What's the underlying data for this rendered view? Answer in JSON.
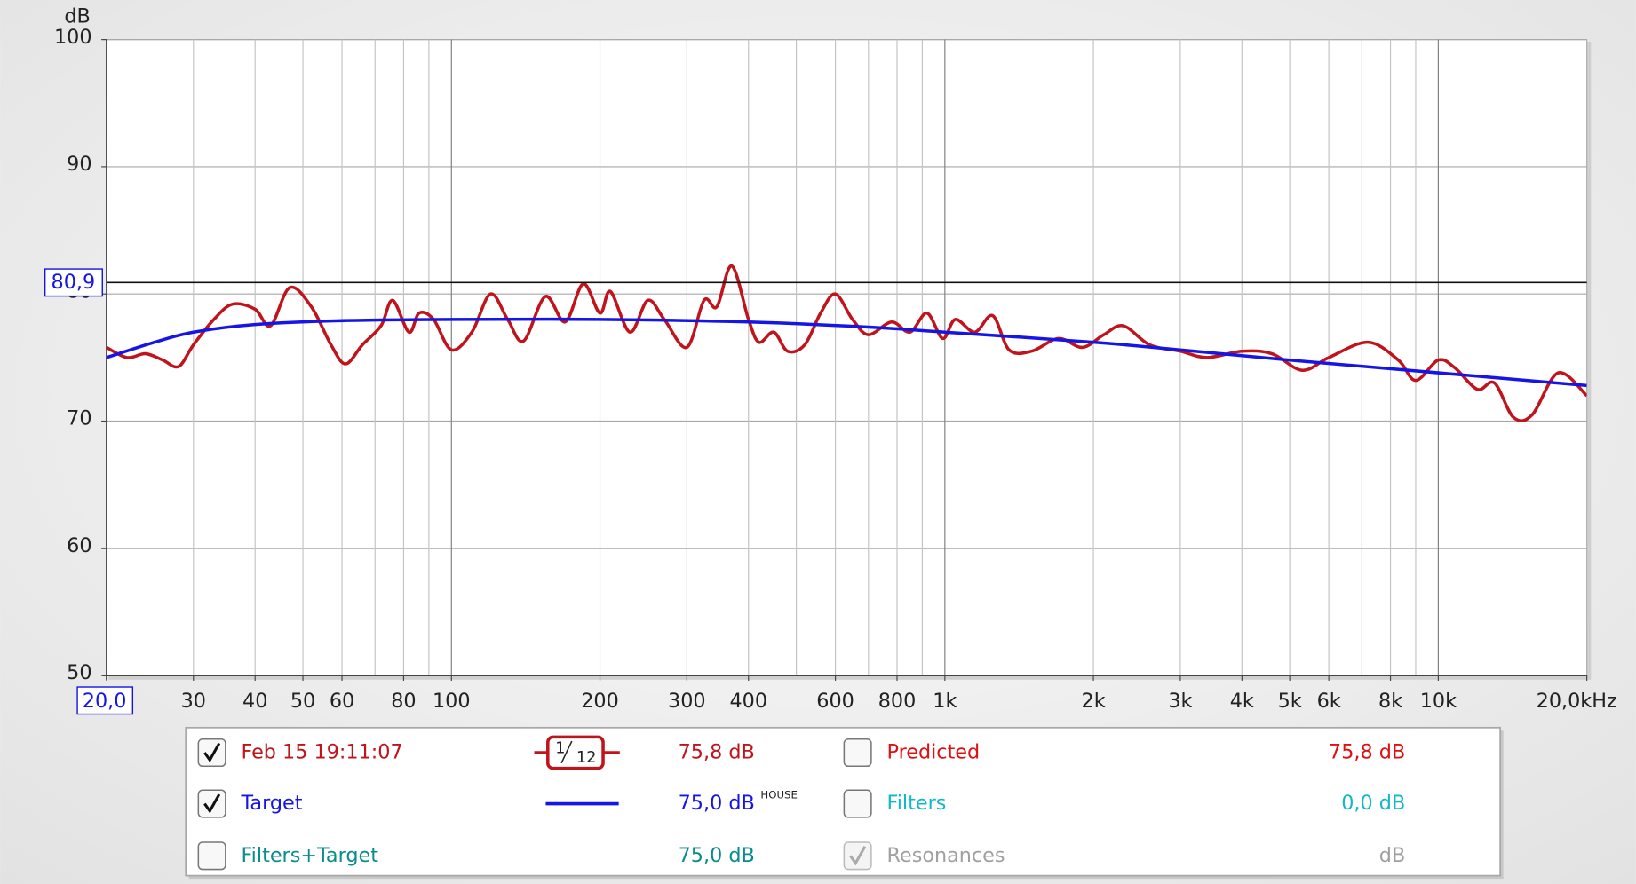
{
  "chart_data": {
    "type": "line",
    "y_label": "dB",
    "x_scale": "log",
    "xlim": [
      20,
      20000
    ],
    "ylim": [
      50,
      100
    ],
    "xticks": [
      {
        "value": 20,
        "label": "20,0"
      },
      30,
      40,
      50,
      60,
      80,
      100,
      200,
      300,
      400,
      600,
      800,
      {
        "value": 1000,
        "label": "1k"
      },
      {
        "value": 2000,
        "label": "2k"
      },
      {
        "value": 3000,
        "label": "3k"
      },
      {
        "value": 4000,
        "label": "4k"
      },
      {
        "value": 5000,
        "label": "5k"
      },
      {
        "value": 6000,
        "label": "6k"
      },
      {
        "value": 8000,
        "label": "8k"
      },
      {
        "value": 10000,
        "label": "10k"
      },
      {
        "value": 20000,
        "label": "20,0kHz"
      }
    ],
    "xgrid_minor": [
      70,
      90,
      500,
      700,
      900,
      7000,
      9000
    ],
    "yticks": [
      50,
      60,
      70,
      80,
      90,
      100
    ],
    "grid": true,
    "cursor_y": {
      "value": 80.9,
      "label": "80,9"
    },
    "series": [
      {
        "name": "Feb 15 19:11:07",
        "color": "#c0141c",
        "checked": true,
        "x": [
          20,
          22,
          24,
          26,
          28,
          30,
          33,
          36,
          40,
          43,
          47,
          52,
          57,
          61,
          66,
          72,
          76,
          82,
          86,
          92,
          100,
          110,
          120,
          130,
          140,
          155,
          170,
          185,
          200,
          210,
          230,
          250,
          270,
          300,
          325,
          345,
          370,
          400,
          420,
          450,
          480,
          520,
          560,
          600,
          650,
          700,
          780,
          850,
          920,
          990,
          1050,
          1150,
          1250,
          1350,
          1500,
          1700,
          1900,
          2100,
          2300,
          2600,
          3000,
          3400,
          4000,
          4600,
          5300,
          6000,
          7200,
          8300,
          9000,
          10000,
          10800,
          12000,
          13000,
          14200,
          15500,
          17500,
          20000
        ],
        "values": [
          75.8,
          75.0,
          75.3,
          74.8,
          74.3,
          76.0,
          78.0,
          79.2,
          78.8,
          77.5,
          80.5,
          79.0,
          76.0,
          74.5,
          76.0,
          77.5,
          79.5,
          77.0,
          78.5,
          78.0,
          75.6,
          77.0,
          80.0,
          78.0,
          76.3,
          79.8,
          77.8,
          80.8,
          78.5,
          80.2,
          77.0,
          79.5,
          78.0,
          75.8,
          79.5,
          79.0,
          82.2,
          78.0,
          76.2,
          77.0,
          75.5,
          76.0,
          78.5,
          80.0,
          78.0,
          76.8,
          77.8,
          77.0,
          78.5,
          76.5,
          78.0,
          77.0,
          78.3,
          75.6,
          75.5,
          76.5,
          75.8,
          76.8,
          77.5,
          76.0,
          75.5,
          75.0,
          75.5,
          75.3,
          74.0,
          75.0,
          76.2,
          74.8,
          73.2,
          74.8,
          74.2,
          72.5,
          73.0,
          70.3,
          70.5,
          73.8,
          72.0
        ]
      },
      {
        "name": "Target",
        "color": "#1515e8",
        "checked": true,
        "x": [
          20,
          25,
          30,
          40,
          60,
          100,
          200,
          400,
          700,
          1000,
          2000,
          3000,
          5000,
          10000,
          20000
        ],
        "values": [
          75.0,
          76.2,
          77.0,
          77.6,
          77.9,
          78.0,
          78.0,
          77.8,
          77.4,
          77.0,
          76.2,
          75.6,
          74.8,
          73.8,
          72.8
        ]
      }
    ]
  },
  "legend_panel": {
    "smoothing": {
      "num": "1",
      "den": "12"
    },
    "series_levels": [
      "75,8 dB",
      "75,0 dB"
    ],
    "house_label": "HOUSE",
    "filters_target": {
      "checked": false,
      "label": "Filters+Target",
      "level": "75,0 dB",
      "color": "#0a8c8c"
    },
    "predicted": {
      "checked": false,
      "label": "Predicted",
      "level": "75,8 dB",
      "color": "#e01010"
    },
    "filters": {
      "checked": false,
      "label": "Filters",
      "level": "0,0 dB",
      "color": "#10b8c8"
    },
    "resonances": {
      "checked": true,
      "label": "Resonances",
      "level": "dB",
      "color": "#a0a0a0"
    }
  }
}
